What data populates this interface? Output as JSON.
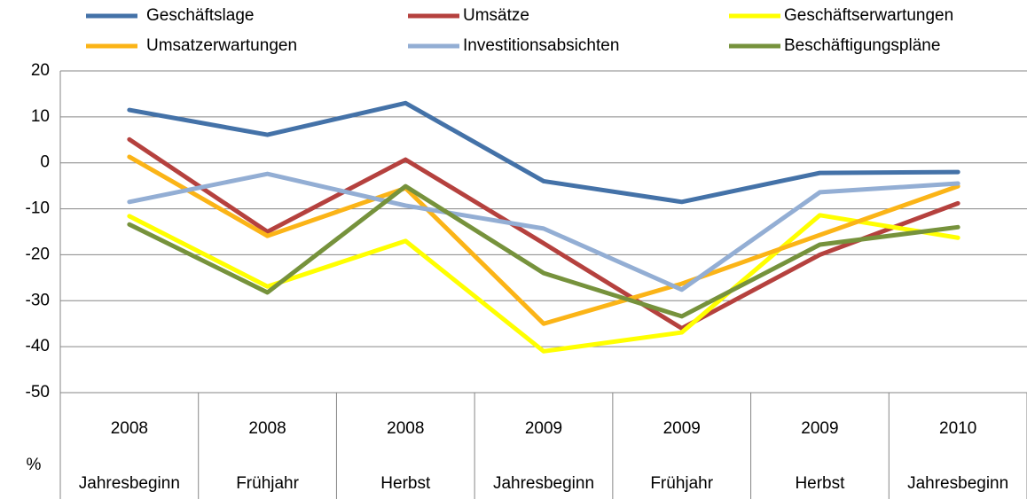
{
  "chart_data": {
    "type": "line",
    "y_label": "%",
    "categories": [
      "2008",
      "2008",
      "2008",
      "2009",
      "2009",
      "2009",
      "2010"
    ],
    "periods": [
      "Jahresbeginn",
      "Frühjahr",
      "Herbst",
      "Jahresbeginn",
      "Frühjahr",
      "Herbst",
      "Jahresbeginn"
    ],
    "series": [
      {
        "name": "Geschäftslage",
        "color": "#4472a8",
        "values": [
          11.5,
          6.1,
          13,
          -4,
          -8.5,
          -2.2,
          -2
        ]
      },
      {
        "name": "Umsätze",
        "color": "#b5413e",
        "values": [
          5.1,
          -15,
          0.7,
          -17.5,
          -36,
          -20,
          -8.8
        ]
      },
      {
        "name": "Geschäftserwartungen",
        "color": "#ffff00",
        "values": [
          -11.6,
          -26.9,
          -17,
          -41,
          -36.9,
          -11.4,
          -16.3
        ]
      },
      {
        "name": "Umsatzerwartungen",
        "color": "#fbb417",
        "values": [
          1.3,
          -15.9,
          -5.5,
          -35,
          -26.3,
          -15.7,
          -5.1
        ]
      },
      {
        "name": "Investitionsabsichten",
        "color": "#93aed4",
        "values": [
          -8.5,
          -2.4,
          -9.3,
          -14.3,
          -27.6,
          -6.4,
          -4.5
        ]
      },
      {
        "name": "Beschäftigungspläne",
        "color": "#76923c",
        "values": [
          -13.4,
          -28.2,
          -5.1,
          -24,
          -33.4,
          -17.8,
          -14
        ]
      }
    ],
    "ylim": [
      -50,
      20
    ],
    "yticks": [
      -50,
      -40,
      -30,
      -20,
      -10,
      0,
      10,
      20
    ],
    "grid": true
  }
}
